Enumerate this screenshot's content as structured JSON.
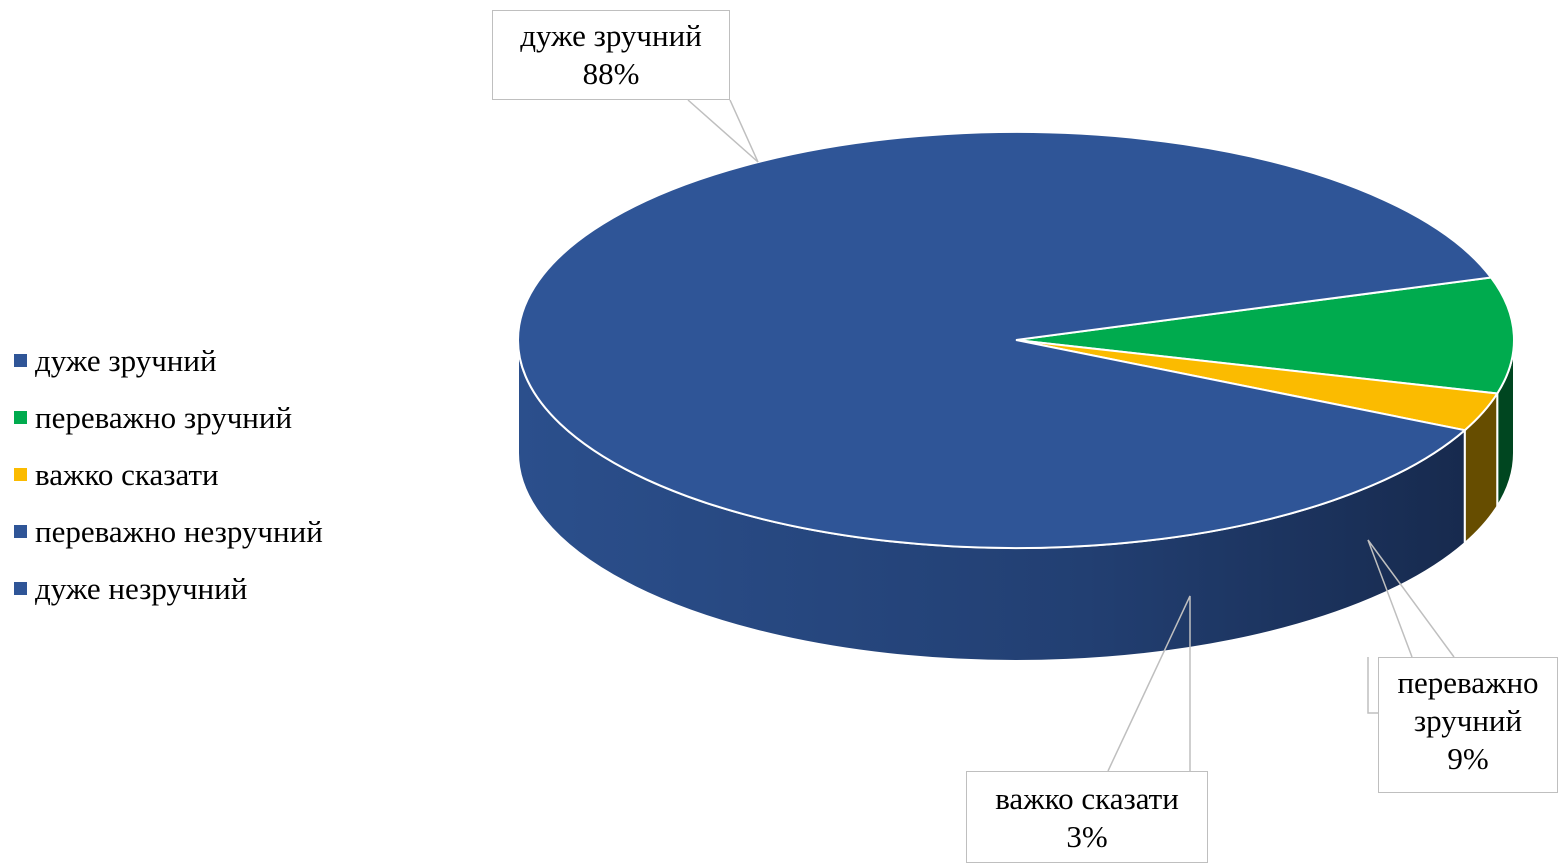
{
  "chart_data": {
    "type": "pie",
    "style": "3d",
    "title": "",
    "legend_position": "left",
    "categories": [
      "дуже зручний",
      "переважно зручний",
      "важко сказати",
      "переважно незручний",
      "дуже незручний"
    ],
    "values": [
      88,
      9,
      3,
      0,
      0
    ],
    "colors": [
      "#2f5597",
      "#00ab4e",
      "#fbbb00",
      "#2f5597",
      "#2f5597"
    ],
    "data_labels": [
      {
        "category": "дуже зручний",
        "name": "дуже зручний",
        "value": "88%"
      },
      {
        "category": "переважно зручний",
        "name_line1": "переважно",
        "name_line2": "зручний",
        "value": "9%"
      },
      {
        "category": "важко сказати",
        "name": "важко сказати",
        "value": "3%"
      }
    ]
  }
}
